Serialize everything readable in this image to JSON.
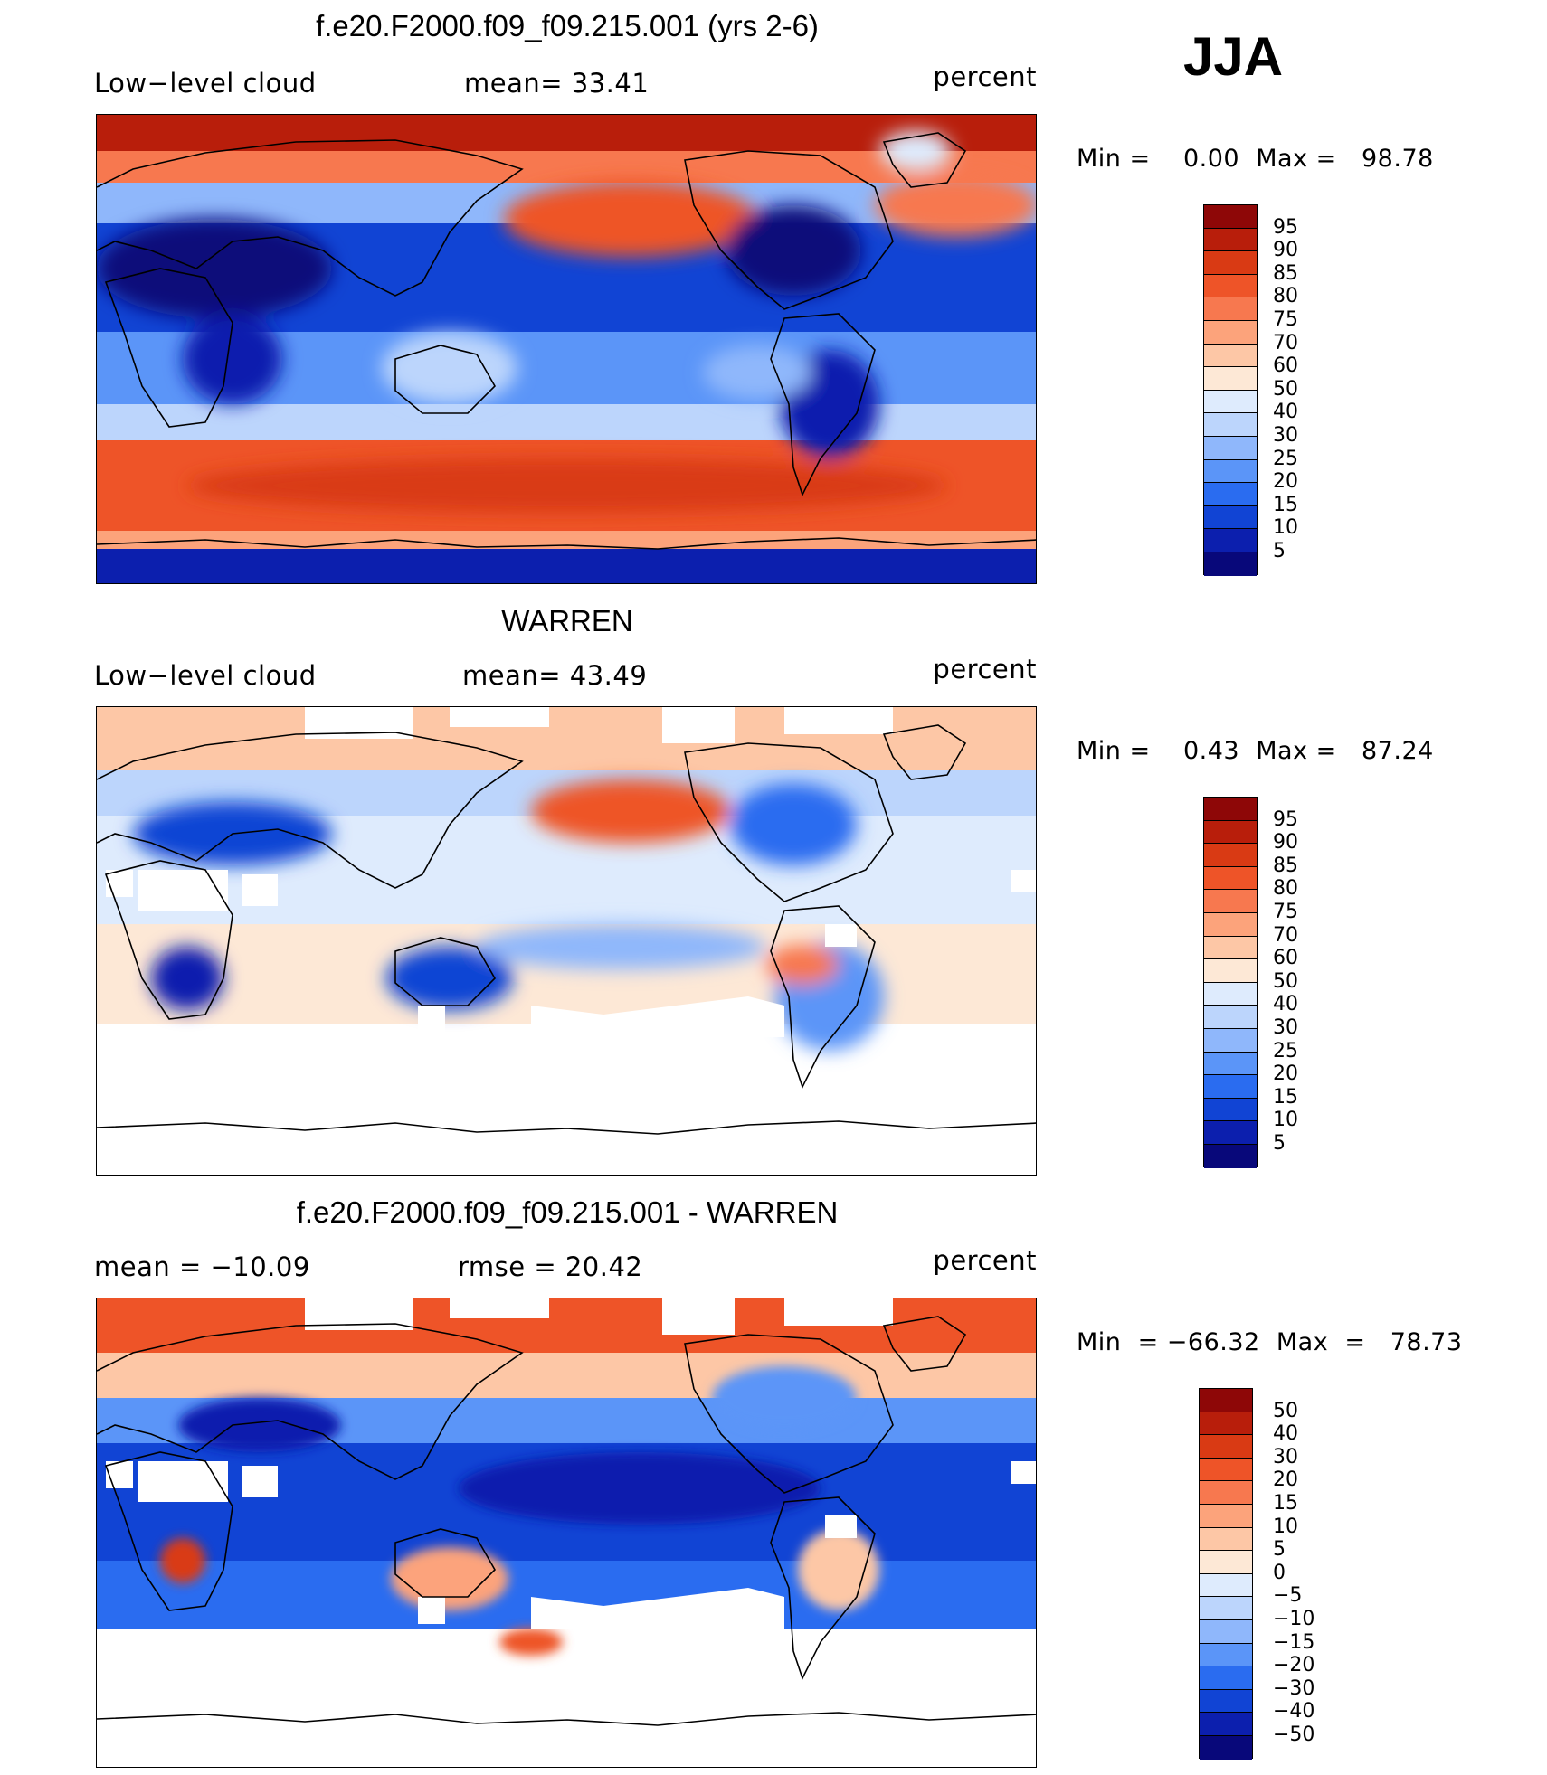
{
  "season": "JJA",
  "colors": {
    "abs_scale": [
      "#08087a",
      "#0c1fae",
      "#1144d4",
      "#2a6cf0",
      "#5b95f8",
      "#8fb7fb",
      "#bcd5fc",
      "#deebfd",
      "#fde8d6",
      "#fdc7a6",
      "#fca37b",
      "#f7784f",
      "#ee5428",
      "#d93a14",
      "#b81e0b",
      "#8e0707"
    ],
    "diff_scale": [
      "#08087a",
      "#0c1fae",
      "#1144d4",
      "#2a6cf0",
      "#5b95f8",
      "#8fb7fb",
      "#bcd5fc",
      "#deebfd",
      "#fde8d6",
      "#fdc7a6",
      "#fca37b",
      "#f7784f",
      "#ee5428",
      "#d93a14",
      "#b81e0b",
      "#8e0707"
    ],
    "land_outline": "#000000"
  },
  "panels": [
    {
      "title": "f.e20.F2000.f09_f09.215.001 (yrs 2-6)",
      "left_label": "Low−level cloud",
      "mid_label": "mean=   33.41",
      "right_label": "percent",
      "minmax": "Min =    0.00  Max =   98.78",
      "colorbar_labels": [
        "95",
        "90",
        "85",
        "80",
        "75",
        "70",
        "60",
        "50",
        "40",
        "30",
        "25",
        "20",
        "15",
        "10",
        "5"
      ]
    },
    {
      "title": "WARREN",
      "left_label": "Low−level cloud",
      "mid_label": "mean=   43.49",
      "right_label": "percent",
      "minmax": "Min =    0.43  Max =   87.24",
      "colorbar_labels": [
        "95",
        "90",
        "85",
        "80",
        "75",
        "70",
        "60",
        "50",
        "40",
        "30",
        "25",
        "20",
        "15",
        "10",
        "5"
      ]
    },
    {
      "title": "f.e20.F2000.f09_f09.215.001 - WARREN",
      "left_label": "mean  =  −10.09",
      "mid_label": "rmse  =   20.42",
      "right_label": "percent",
      "minmax": "Min  = −66.32  Max  =   78.73",
      "colorbar_labels": [
        "50",
        "40",
        "30",
        "20",
        "15",
        "10",
        "5",
        "0",
        "−5",
        "−10",
        "−15",
        "−20",
        "−30",
        "−40",
        "−50"
      ]
    }
  ]
}
